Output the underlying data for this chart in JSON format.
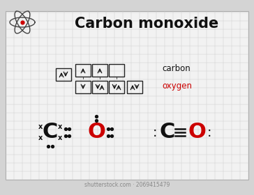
{
  "title": "Carbon monoxide",
  "bg_color": "#d4d4d4",
  "paper_color": "#f2f2f2",
  "grid_color": "#c8c8c8",
  "text_color": "#111111",
  "oxygen_color": "#cc0000",
  "carbon_label": "carbon",
  "oxygen_label": "oxygen",
  "watermark": "shutterstock.com · 2069415479"
}
